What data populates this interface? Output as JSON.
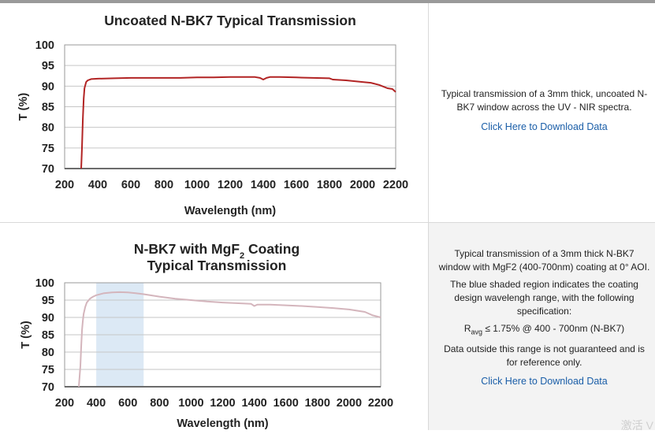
{
  "chart_data": [
    {
      "type": "line",
      "title": "Uncoated N-BK7 Typical Transmission",
      "xlabel": "Wavelength (nm)",
      "ylabel": "T (%)",
      "xlim": [
        200,
        2200
      ],
      "ylim": [
        70,
        100
      ],
      "xticks": [
        200,
        400,
        600,
        800,
        1000,
        1200,
        1400,
        1600,
        1800,
        2000,
        2200
      ],
      "yticks": [
        70,
        75,
        80,
        85,
        90,
        95,
        100
      ],
      "grid": true,
      "line_color": "#b22424",
      "series": [
        {
          "x": [
            300,
            305,
            310,
            315,
            320,
            330,
            340,
            360,
            400,
            500,
            600,
            700,
            800,
            900,
            1000,
            1100,
            1200,
            1300,
            1350,
            1380,
            1400,
            1420,
            1440,
            1500,
            1600,
            1700,
            1800,
            1820,
            1900,
            2000,
            2050,
            2100,
            2150,
            2180,
            2200
          ],
          "y": [
            70.0,
            75.0,
            82.0,
            87.0,
            89.5,
            91.0,
            91.4,
            91.7,
            91.8,
            91.9,
            92.0,
            92.0,
            92.0,
            92.0,
            92.1,
            92.1,
            92.2,
            92.2,
            92.2,
            92.0,
            91.6,
            92.0,
            92.2,
            92.2,
            92.1,
            92.0,
            91.9,
            91.6,
            91.4,
            91.0,
            90.8,
            90.3,
            89.5,
            89.3,
            88.6
          ]
        }
      ]
    },
    {
      "type": "line",
      "title_parts": [
        "N-BK7 with MgF",
        "2",
        " Coating"
      ],
      "title_line2": "Typical Transmission",
      "xlabel": "Wavelength (nm)",
      "ylabel": "T (%)",
      "xlim": [
        200,
        2200
      ],
      "ylim": [
        70,
        100
      ],
      "xticks": [
        200,
        400,
        600,
        800,
        1000,
        1200,
        1400,
        1600,
        1800,
        2000,
        2200
      ],
      "yticks": [
        70,
        75,
        80,
        85,
        90,
        95,
        100
      ],
      "grid": true,
      "line_color": "#d4b5bc",
      "shaded_region": [
        400,
        700
      ],
      "shade_color": "#dce9f5",
      "series": [
        {
          "x": [
            290,
            300,
            305,
            310,
            315,
            320,
            330,
            340,
            360,
            380,
            400,
            450,
            500,
            550,
            600,
            650,
            700,
            800,
            900,
            1000,
            1100,
            1200,
            1300,
            1380,
            1400,
            1420,
            1500,
            1600,
            1700,
            1800,
            1900,
            2000,
            2100,
            2150,
            2200
          ],
          "y": [
            70.0,
            76.0,
            82.0,
            86.5,
            89.0,
            91.0,
            93.0,
            94.3,
            95.4,
            96.0,
            96.4,
            97.0,
            97.2,
            97.3,
            97.2,
            97.0,
            96.7,
            96.0,
            95.4,
            95.0,
            94.6,
            94.3,
            94.1,
            93.9,
            93.3,
            93.7,
            93.7,
            93.5,
            93.3,
            93.0,
            92.7,
            92.3,
            91.6,
            90.6,
            90.0
          ]
        }
      ]
    }
  ],
  "rows": [
    {
      "description": "Typical transmission of a 3mm thick, uncoated N-BK7 window across the UV - NIR spectra.",
      "download_link": "Click Here to Download Data"
    },
    {
      "description": "Typical transmission of a 3mm thick N-BK7 window with MgF2 (400-700nm) coating at 0° AOI.",
      "shaded_note": "The blue shaded region indicates the coating design wavelengh range, with the following specification:",
      "spec_r": "R",
      "spec_sub": "avg",
      "spec_rest": " ≤ 1.75% @ 400 - 700nm (N-BK7)",
      "disclaimer": "Data outside this range is not guaranteed and is for reference only.",
      "download_link": "Click Here to Download Data"
    }
  ],
  "watermark": "激活 V"
}
